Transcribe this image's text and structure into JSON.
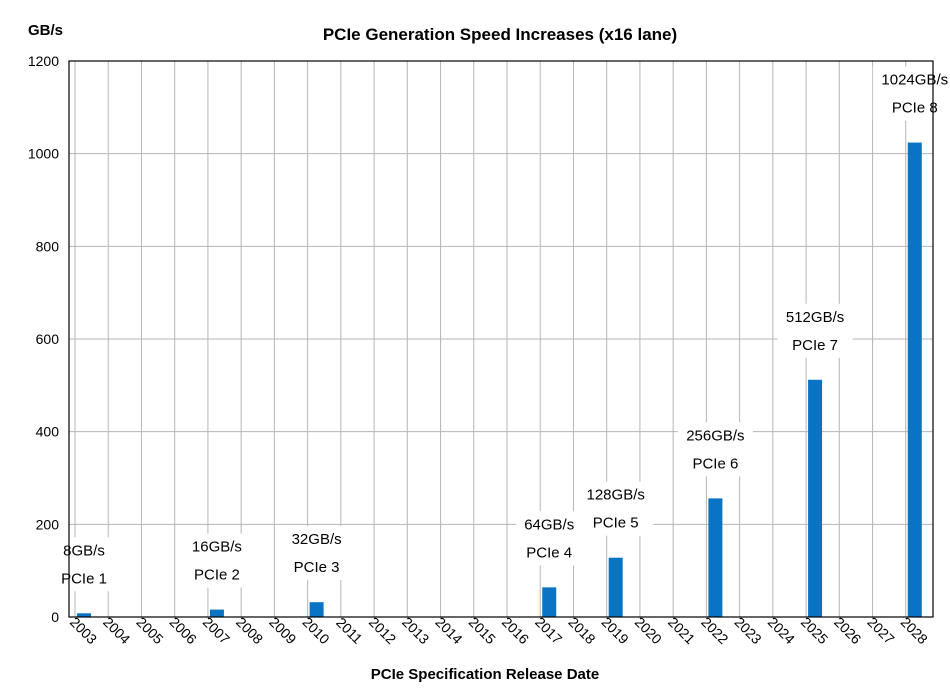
{
  "chart_data": {
    "type": "bar",
    "title": "PCIe Generation Speed Increases (x16 lane)",
    "xlabel": "PCIe Specification Release Date",
    "ylabel": "GB/s",
    "ylim": [
      0,
      1200
    ],
    "yticks": [
      0,
      200,
      400,
      600,
      800,
      1000,
      1200
    ],
    "grid": true,
    "colors": {
      "bar": "#0a74c4"
    },
    "categories": [
      "2003",
      "2004",
      "2005",
      "2006",
      "2007",
      "2008",
      "2009",
      "2010",
      "2011",
      "2012",
      "2013",
      "2014",
      "2015",
      "2016",
      "2017",
      "2018",
      "2019",
      "2020",
      "2021",
      "2022",
      "2023",
      "2024",
      "2025",
      "2026",
      "2027",
      "2028"
    ],
    "values": [
      8,
      0,
      0,
      0,
      16,
      0,
      0,
      32,
      0,
      0,
      0,
      0,
      0,
      0,
      64,
      0,
      128,
      0,
      0,
      256,
      0,
      0,
      512,
      0,
      0,
      1024
    ],
    "annotations": [
      {
        "category": "2003",
        "value": 8,
        "line1": "8GB/s",
        "line2": "PCIe 1"
      },
      {
        "category": "2007",
        "value": 16,
        "line1": "16GB/s",
        "line2": "PCIe 2"
      },
      {
        "category": "2010",
        "value": 32,
        "line1": "32GB/s",
        "line2": "PCIe 3"
      },
      {
        "category": "2017",
        "value": 64,
        "line1": "64GB/s",
        "line2": "PCIe 4"
      },
      {
        "category": "2019",
        "value": 128,
        "line1": "128GB/s",
        "line2": "PCIe 5"
      },
      {
        "category": "2022",
        "value": 256,
        "line1": "256GB/s",
        "line2": "PCIe 6"
      },
      {
        "category": "2025",
        "value": 512,
        "line1": "512GB/s",
        "line2": "PCIe 7"
      },
      {
        "category": "2028",
        "value": 1024,
        "line1": "1024GB/s",
        "line2": "PCIe 8"
      }
    ]
  }
}
